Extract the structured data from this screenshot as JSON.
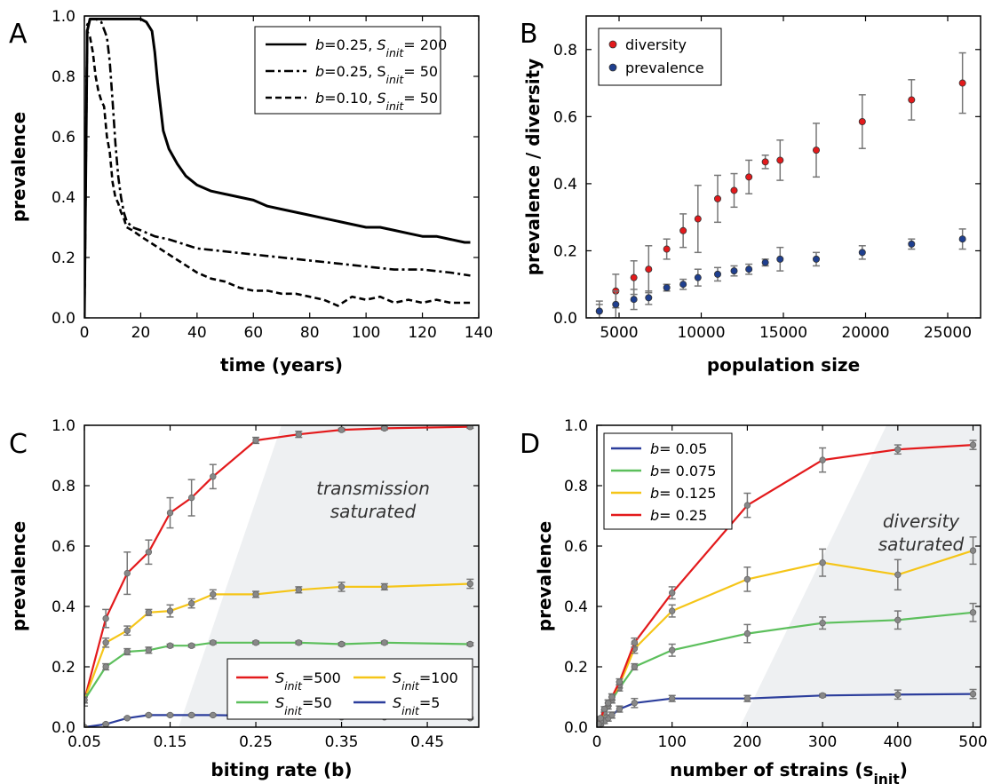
{
  "chart_data": [
    {
      "panel": "A",
      "type": "line",
      "xlabel": "time (years)",
      "ylabel": "prevalence",
      "xlim": [
        0,
        140
      ],
      "ylim": [
        0,
        1.0
      ],
      "xticks": [
        0,
        20,
        40,
        60,
        80,
        100,
        120,
        140
      ],
      "yticks": [
        0.0,
        0.2,
        0.4,
        0.6,
        0.8,
        1.0
      ],
      "legend_position": "top-right",
      "series": [
        {
          "legend_parts": [
            [
              "b",
              true
            ],
            [
              "=0.25, ",
              false
            ],
            [
              "S",
              true
            ],
            [
              "init",
              true,
              "sub"
            ],
            [
              "= 200",
              false
            ]
          ],
          "style": "solid",
          "color": "#000000",
          "x": [
            0,
            1,
            2,
            4,
            8,
            12,
            16,
            20,
            22,
            24,
            25,
            26,
            27,
            28,
            30,
            33,
            36,
            40,
            45,
            50,
            55,
            60,
            65,
            70,
            75,
            80,
            85,
            90,
            95,
            100,
            105,
            110,
            115,
            120,
            125,
            130,
            135,
            137
          ],
          "y": [
            0.0,
            0.95,
            0.99,
            0.99,
            0.99,
            0.99,
            0.99,
            0.99,
            0.98,
            0.95,
            0.88,
            0.78,
            0.7,
            0.62,
            0.56,
            0.51,
            0.47,
            0.44,
            0.42,
            0.41,
            0.4,
            0.39,
            0.37,
            0.36,
            0.35,
            0.34,
            0.33,
            0.32,
            0.31,
            0.3,
            0.3,
            0.29,
            0.28,
            0.27,
            0.27,
            0.26,
            0.25,
            0.25
          ]
        },
        {
          "legend_parts": [
            [
              "b",
              true
            ],
            [
              "=0.25, S",
              false
            ],
            [
              "init",
              true,
              "sub"
            ],
            [
              "= 50",
              false
            ]
          ],
          "style": "dashdot",
          "color": "#000000",
          "x": [
            0,
            1,
            2,
            4,
            6,
            8,
            9,
            10,
            11,
            12,
            13,
            14,
            15,
            16,
            17,
            20,
            25,
            30,
            40,
            50,
            60,
            70,
            80,
            90,
            100,
            110,
            120,
            130,
            137
          ],
          "y": [
            0.0,
            0.97,
            0.99,
            0.99,
            0.98,
            0.93,
            0.85,
            0.72,
            0.58,
            0.47,
            0.4,
            0.35,
            0.32,
            0.31,
            0.3,
            0.29,
            0.27,
            0.26,
            0.23,
            0.22,
            0.21,
            0.2,
            0.19,
            0.18,
            0.17,
            0.16,
            0.16,
            0.15,
            0.14
          ]
        },
        {
          "legend_parts": [
            [
              "b",
              true
            ],
            [
              "=0.10, ",
              false
            ],
            [
              "S",
              true
            ],
            [
              "init",
              true,
              "sub"
            ],
            [
              "= 50",
              false
            ]
          ],
          "style": "dashed",
          "color": "#000000",
          "x": [
            0,
            1,
            2,
            3,
            4,
            5,
            6,
            7,
            8,
            9,
            10,
            11,
            12,
            13,
            14,
            15,
            17,
            20,
            25,
            30,
            35,
            40,
            45,
            50,
            55,
            60,
            65,
            70,
            75,
            80,
            85,
            90,
            95,
            100,
            105,
            110,
            115,
            120,
            125,
            130,
            137
          ],
          "y": [
            0.0,
            0.95,
            0.93,
            0.88,
            0.8,
            0.75,
            0.72,
            0.7,
            0.6,
            0.55,
            0.45,
            0.4,
            0.38,
            0.35,
            0.33,
            0.3,
            0.29,
            0.27,
            0.24,
            0.21,
            0.18,
            0.15,
            0.13,
            0.12,
            0.1,
            0.09,
            0.09,
            0.08,
            0.08,
            0.07,
            0.06,
            0.04,
            0.07,
            0.06,
            0.07,
            0.05,
            0.06,
            0.05,
            0.06,
            0.05,
            0.05
          ]
        }
      ]
    },
    {
      "panel": "B",
      "type": "scatter",
      "xlabel": "population size",
      "ylabel": "prevalence / diversity",
      "xlim": [
        3000,
        27000
      ],
      "ylim": [
        0,
        0.9
      ],
      "xticks": [
        5000,
        10000,
        15000,
        20000,
        25000
      ],
      "yticks": [
        0.0,
        0.2,
        0.4,
        0.6,
        0.8
      ],
      "legend_position": "top-left",
      "series": [
        {
          "name": "diversity",
          "color": "#e31a1c",
          "x": [
            3800,
            4800,
            5900,
            6800,
            7900,
            8900,
            9800,
            11000,
            12000,
            12900,
            13900,
            14800,
            17000,
            19800,
            22800,
            25900
          ],
          "y": [
            0.02,
            0.08,
            0.12,
            0.145,
            0.205,
            0.26,
            0.295,
            0.355,
            0.38,
            0.42,
            0.465,
            0.47,
            0.5,
            0.585,
            0.65,
            0.7
          ],
          "err": [
            0.03,
            0.05,
            0.05,
            0.07,
            0.03,
            0.05,
            0.1,
            0.07,
            0.05,
            0.05,
            0.02,
            0.06,
            0.08,
            0.08,
            0.06,
            0.09
          ]
        },
        {
          "name": "prevalence",
          "color": "#1f3f8f",
          "x": [
            3800,
            4800,
            5900,
            6800,
            7900,
            8900,
            9800,
            11000,
            12000,
            12900,
            13900,
            14800,
            17000,
            19800,
            22800,
            25900
          ],
          "y": [
            0.02,
            0.04,
            0.055,
            0.06,
            0.09,
            0.1,
            0.12,
            0.13,
            0.14,
            0.145,
            0.165,
            0.175,
            0.175,
            0.195,
            0.22,
            0.235
          ],
          "err": [
            0.02,
            0.04,
            0.03,
            0.02,
            0.01,
            0.015,
            0.025,
            0.02,
            0.015,
            0.015,
            0.01,
            0.035,
            0.02,
            0.02,
            0.015,
            0.03
          ]
        }
      ]
    },
    {
      "panel": "C",
      "type": "line",
      "xlabel": "biting rate (b)",
      "ylabel": "prevalence",
      "xlim": [
        0.05,
        0.51
      ],
      "ylim": [
        0,
        1.0
      ],
      "xticks": [
        0.05,
        0.15,
        0.25,
        0.35,
        0.45
      ],
      "xtick_labels": [
        "0.05",
        "0.15",
        "0.25",
        "0.35",
        "0.45"
      ],
      "yticks": [
        0.0,
        0.2,
        0.4,
        0.6,
        0.8,
        1.0
      ],
      "legend_position": "bottom-right",
      "annotation": [
        "transmission",
        "saturated"
      ],
      "shaded_region": {
        "x_bottom": 0.16,
        "x_top": 0.28
      },
      "series": [
        {
          "legend_parts": [
            [
              "S",
              true
            ],
            [
              "init",
              true,
              "sub"
            ],
            [
              "=500",
              false
            ]
          ],
          "color": "#e31a1c",
          "x": [
            0.05,
            0.075,
            0.1,
            0.125,
            0.15,
            0.175,
            0.2,
            0.25,
            0.3,
            0.35,
            0.4,
            0.5
          ],
          "y": [
            0.09,
            0.36,
            0.51,
            0.58,
            0.71,
            0.76,
            0.83,
            0.95,
            0.97,
            0.985,
            0.99,
            0.995
          ],
          "err": [
            0.02,
            0.03,
            0.07,
            0.04,
            0.05,
            0.06,
            0.04,
            0.01,
            0.01,
            0.005,
            0.005,
            0.005
          ]
        },
        {
          "legend_parts": [
            [
              "S",
              true
            ],
            [
              "init",
              true,
              "sub"
            ],
            [
              "=100",
              false
            ]
          ],
          "color": "#f5c518",
          "x": [
            0.05,
            0.075,
            0.1,
            0.125,
            0.15,
            0.175,
            0.2,
            0.25,
            0.3,
            0.35,
            0.4,
            0.5
          ],
          "y": [
            0.09,
            0.28,
            0.32,
            0.38,
            0.385,
            0.41,
            0.44,
            0.44,
            0.455,
            0.465,
            0.465,
            0.475
          ],
          "err": [
            0.02,
            0.015,
            0.015,
            0.01,
            0.02,
            0.015,
            0.015,
            0.01,
            0.01,
            0.015,
            0.01,
            0.015
          ]
        },
        {
          "legend_parts": [
            [
              "S",
              true
            ],
            [
              "init",
              true,
              "sub"
            ],
            [
              "=50",
              false
            ]
          ],
          "color": "#5cbf5c",
          "x": [
            0.05,
            0.075,
            0.1,
            0.125,
            0.15,
            0.175,
            0.2,
            0.25,
            0.3,
            0.35,
            0.4,
            0.5
          ],
          "y": [
            0.09,
            0.2,
            0.25,
            0.255,
            0.27,
            0.27,
            0.28,
            0.28,
            0.28,
            0.275,
            0.28,
            0.275
          ],
          "err": [
            0.01,
            0.01,
            0.01,
            0.01,
            0.005,
            0.005,
            0.005,
            0.005,
            0.005,
            0.005,
            0.005,
            0.005
          ]
        },
        {
          "legend_parts": [
            [
              "S",
              true
            ],
            [
              "init",
              true,
              "sub"
            ],
            [
              "=5",
              false
            ]
          ],
          "color": "#2c3e9c",
          "x": [
            0.05,
            0.075,
            0.1,
            0.125,
            0.15,
            0.175,
            0.2,
            0.25,
            0.3,
            0.35,
            0.4,
            0.5
          ],
          "y": [
            0.0,
            0.01,
            0.03,
            0.04,
            0.04,
            0.04,
            0.04,
            0.038,
            0.035,
            0.033,
            0.033,
            0.03
          ],
          "err": [
            0.003,
            0.003,
            0.003,
            0.003,
            0.003,
            0.003,
            0.003,
            0.003,
            0.003,
            0.003,
            0.003,
            0.003
          ]
        }
      ]
    },
    {
      "panel": "D",
      "type": "line",
      "xlabel_parts": [
        [
          "number of strains (s",
          false
        ],
        [
          "init",
          false,
          "sub"
        ],
        [
          ")",
          false
        ]
      ],
      "ylabel": "prevalence",
      "xlim": [
        0,
        510
      ],
      "ylim": [
        0,
        1.0
      ],
      "xticks": [
        0,
        100,
        200,
        300,
        400,
        500
      ],
      "yticks": [
        0.0,
        0.2,
        0.4,
        0.6,
        0.8,
        1.0
      ],
      "legend_position": "top-left",
      "annotation": [
        "diversity",
        "saturated"
      ],
      "shaded_region": {
        "x_bottom": 190,
        "x_top": 385
      },
      "series": [
        {
          "legend_parts": [
            [
              "b",
              true
            ],
            [
              "= 0.05",
              false
            ]
          ],
          "color": "#2c3e9c",
          "x": [
            2,
            5,
            10,
            15,
            20,
            30,
            50,
            100,
            200,
            300,
            400,
            500
          ],
          "y": [
            0.005,
            0.01,
            0.02,
            0.03,
            0.04,
            0.06,
            0.08,
            0.095,
            0.095,
            0.105,
            0.108,
            0.11
          ],
          "err": [
            0.003,
            0.005,
            0.008,
            0.01,
            0.01,
            0.01,
            0.015,
            0.01,
            0.01,
            0.005,
            0.015,
            0.015
          ]
        },
        {
          "legend_parts": [
            [
              "b",
              true
            ],
            [
              "= 0.075",
              false
            ]
          ],
          "color": "#5cbf5c",
          "x": [
            2,
            5,
            10,
            15,
            20,
            30,
            50,
            100,
            200,
            300,
            400,
            500
          ],
          "y": [
            0.01,
            0.02,
            0.04,
            0.07,
            0.09,
            0.13,
            0.2,
            0.255,
            0.31,
            0.345,
            0.355,
            0.38
          ],
          "err": [
            0.005,
            0.005,
            0.008,
            0.01,
            0.01,
            0.01,
            0.01,
            0.02,
            0.03,
            0.02,
            0.03,
            0.03
          ]
        },
        {
          "legend_parts": [
            [
              "b",
              true
            ],
            [
              "= 0.125",
              false
            ]
          ],
          "color": "#f5c518",
          "x": [
            2,
            5,
            10,
            15,
            20,
            30,
            50,
            100,
            200,
            300,
            400,
            500
          ],
          "y": [
            0.01,
            0.02,
            0.05,
            0.08,
            0.1,
            0.14,
            0.26,
            0.385,
            0.49,
            0.545,
            0.505,
            0.585
          ],
          "err": [
            0.005,
            0.005,
            0.008,
            0.01,
            0.01,
            0.01,
            0.015,
            0.02,
            0.04,
            0.045,
            0.05,
            0.045
          ]
        },
        {
          "legend_parts": [
            [
              "b",
              true
            ],
            [
              "= 0.25",
              false
            ]
          ],
          "color": "#e31a1c",
          "x": [
            2,
            5,
            10,
            15,
            20,
            30,
            50,
            100,
            200,
            300,
            400,
            500
          ],
          "y": [
            0.01,
            0.03,
            0.06,
            0.08,
            0.1,
            0.15,
            0.28,
            0.445,
            0.735,
            0.885,
            0.92,
            0.935
          ],
          "err": [
            0.005,
            0.005,
            0.008,
            0.01,
            0.01,
            0.01,
            0.015,
            0.02,
            0.04,
            0.04,
            0.015,
            0.015
          ]
        }
      ]
    }
  ]
}
